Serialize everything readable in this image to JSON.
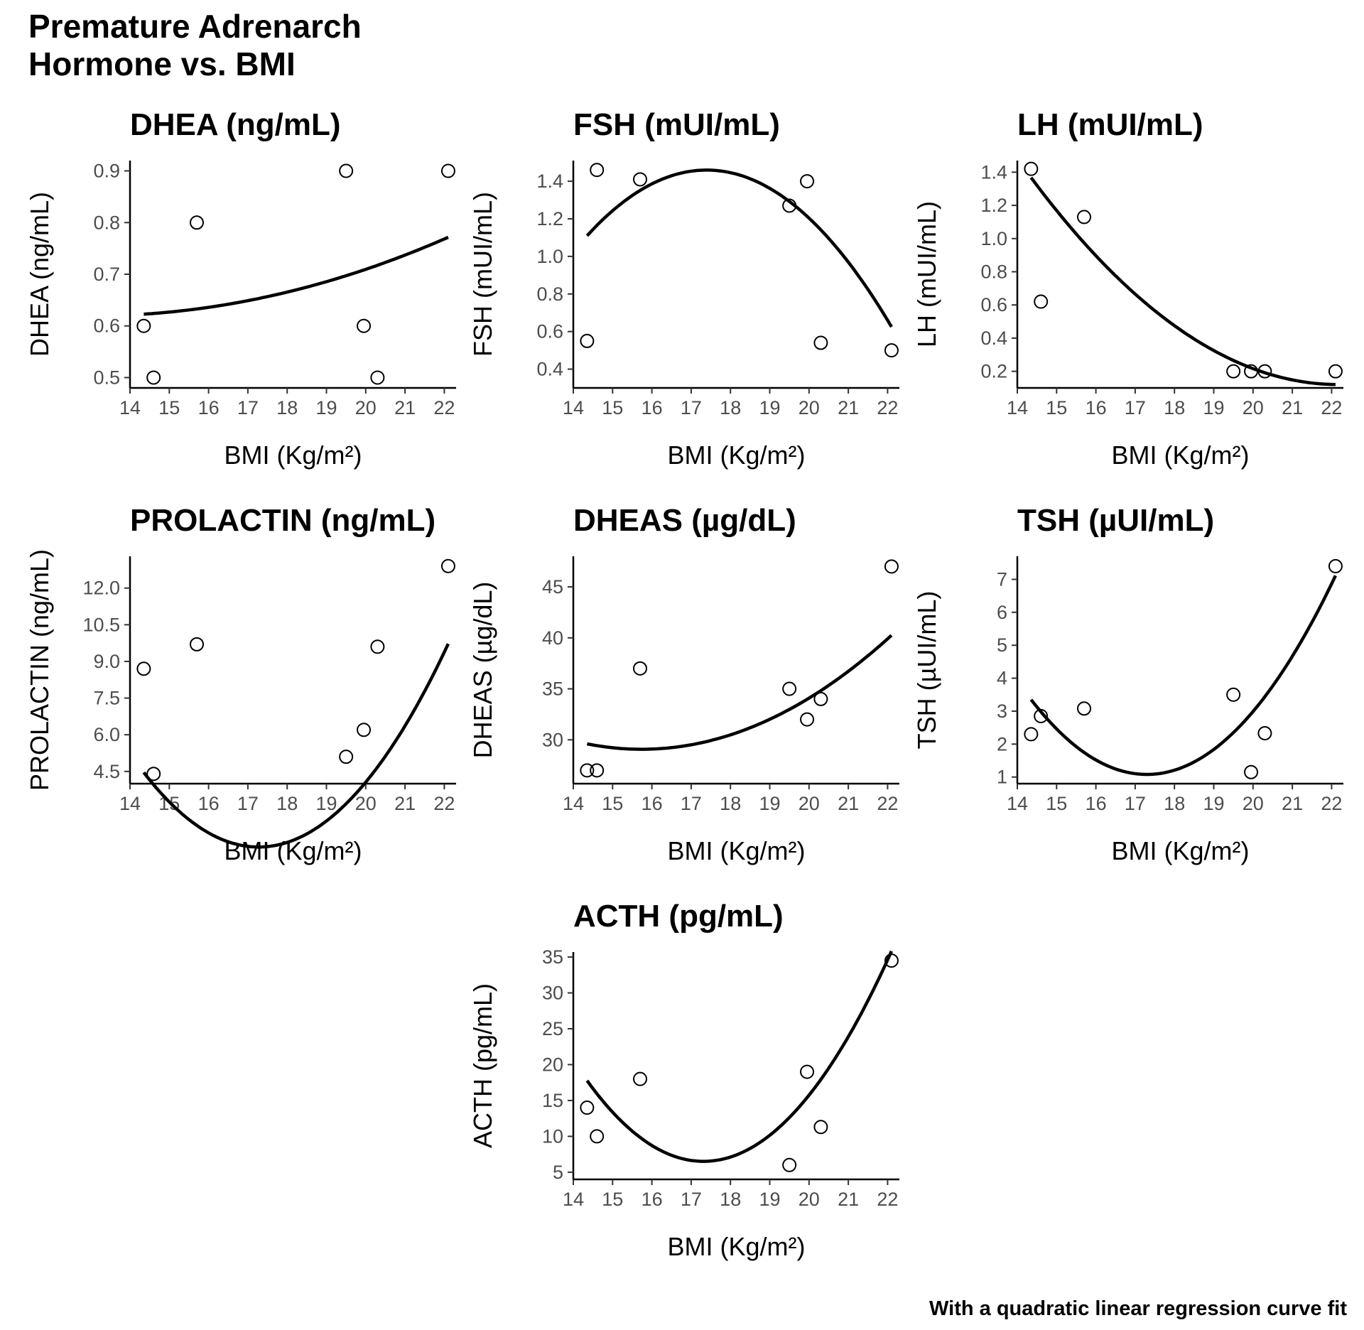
{
  "title": [
    "Premature Adrenarch",
    "Hormone vs. BMI"
  ],
  "caption": "With a quadratic linear regression curve fit",
  "chart_data": [
    {
      "type": "scatter",
      "title": "DHEA (ng/mL)",
      "xlabel": "BMI (Kg/m²)",
      "ylabel": "DHEA (ng/mL)",
      "xlim": [
        14,
        22.3
      ],
      "ylim": [
        0.48,
        0.92
      ],
      "x_ticks": [
        14,
        15,
        16,
        17,
        18,
        19,
        20,
        21,
        22
      ],
      "y_ticks": [
        0.5,
        0.6,
        0.7,
        0.8,
        0.9
      ],
      "y_tick_labels": [
        "0.5",
        "0.6",
        "0.7",
        "0.8",
        "0.9"
      ],
      "points": [
        [
          14.35,
          0.6
        ],
        [
          14.6,
          0.5
        ],
        [
          15.7,
          0.8
        ],
        [
          19.5,
          0.9
        ],
        [
          19.95,
          0.6
        ],
        [
          20.3,
          0.5
        ],
        [
          22.1,
          0.9
        ]
      ],
      "fit": {
        "method": "quadratic",
        "x_range": [
          14.35,
          22.1
        ],
        "coef": [
          0.9275,
          -0.0475,
          0.00183
        ]
      }
    },
    {
      "type": "scatter",
      "title": "FSH (mUI/mL)",
      "xlabel": "BMI (Kg/m²)",
      "ylabel": "FSH (mUI/mL)",
      "xlim": [
        14,
        22.3
      ],
      "ylim": [
        0.3,
        1.51
      ],
      "x_ticks": [
        14,
        15,
        16,
        17,
        18,
        19,
        20,
        21,
        22
      ],
      "y_ticks": [
        0.4,
        0.6,
        0.8,
        1.0,
        1.2,
        1.4
      ],
      "y_tick_labels": [
        "0.4",
        "0.6",
        "0.8",
        "1.0",
        "1.2",
        "1.4"
      ],
      "points": [
        [
          14.35,
          0.55
        ],
        [
          14.6,
          1.46
        ],
        [
          15.7,
          1.41
        ],
        [
          19.5,
          1.27
        ],
        [
          19.95,
          1.4
        ],
        [
          20.3,
          0.54
        ],
        [
          22.1,
          0.5
        ]
      ],
      "fit": {
        "method": "quadratic",
        "x_range": [
          14.35,
          22.1
        ],
        "coef": [
          -9.9484,
          1.3116,
          -0.0377
        ]
      }
    },
    {
      "type": "scatter",
      "title": "LH (mUI/mL)",
      "xlabel": "BMI (Kg/m²)",
      "ylabel": "LH (mUI/mL)",
      "xlim": [
        14,
        22.3
      ],
      "ylim": [
        0.1,
        1.47
      ],
      "x_ticks": [
        14,
        15,
        16,
        17,
        18,
        19,
        20,
        21,
        22
      ],
      "y_ticks": [
        0.2,
        0.4,
        0.6,
        0.8,
        1.0,
        1.2,
        1.4
      ],
      "y_tick_labels": [
        "0.2",
        "0.4",
        "0.6",
        "0.8",
        "1.0",
        "1.2",
        "1.4"
      ],
      "points": [
        [
          14.35,
          1.42
        ],
        [
          14.6,
          0.62
        ],
        [
          15.7,
          1.13
        ],
        [
          19.5,
          0.2
        ],
        [
          19.95,
          0.2
        ],
        [
          20.3,
          0.2
        ],
        [
          22.1,
          0.2
        ]
      ],
      "fit": {
        "method": "quadratic",
        "x_range": [
          14.35,
          22.1
        ],
        "coef": [
          10.1464,
          -0.9045,
          0.0204
        ]
      }
    },
    {
      "type": "scatter",
      "title": "PROLACTIN (ng/mL)",
      "xlabel": "BMI (Kg/m²)",
      "ylabel": "PROLACTIN (ng/mL)",
      "xlim": [
        14,
        22.3
      ],
      "ylim": [
        4.0,
        13.3
      ],
      "x_ticks": [
        14,
        15,
        16,
        17,
        18,
        19,
        20,
        21,
        22
      ],
      "y_ticks": [
        4.5,
        6.0,
        7.5,
        9.0,
        10.5,
        12.0
      ],
      "y_tick_labels": [
        "4.5",
        "6.0",
        "7.5",
        "9.0",
        "10.5",
        "12.0"
      ],
      "points": [
        [
          14.35,
          8.7
        ],
        [
          14.6,
          4.4
        ],
        [
          15.7,
          9.7
        ],
        [
          19.5,
          5.1
        ],
        [
          19.95,
          6.2
        ],
        [
          20.3,
          9.6
        ],
        [
          22.1,
          12.9
        ]
      ],
      "fit": {
        "method": "quadratic",
        "x_range": [
          14.35,
          22.1
        ],
        "coef": [
          107.9,
          -12.33,
          0.3569
        ]
      }
    },
    {
      "type": "scatter",
      "title": "DHEAS (µg/dL)",
      "xlabel": "BMI (Kg/m²)",
      "ylabel": "DHEAS (µg/dL)",
      "xlim": [
        14,
        22.3
      ],
      "ylim": [
        25.7,
        48
      ],
      "x_ticks": [
        14,
        15,
        16,
        17,
        18,
        19,
        20,
        21,
        22
      ],
      "y_ticks": [
        30,
        35,
        40,
        45
      ],
      "y_tick_labels": [
        "30",
        "35",
        "40",
        "45"
      ],
      "points": [
        [
          14.35,
          27
        ],
        [
          14.6,
          27
        ],
        [
          15.7,
          37
        ],
        [
          19.5,
          35
        ],
        [
          19.95,
          32
        ],
        [
          20.3,
          34
        ],
        [
          22.1,
          47
        ]
      ],
      "fit": {
        "method": "quadratic",
        "x_range": [
          14.35,
          22.1
        ],
        "coef": [
          97.51,
          -8.697,
          0.2763
        ]
      }
    },
    {
      "type": "scatter",
      "title": "TSH (µUI/mL)",
      "xlabel": "BMI (Kg/m²)",
      "ylabel": "TSH (µUI/mL)",
      "xlim": [
        14,
        22.3
      ],
      "ylim": [
        0.8,
        7.7
      ],
      "x_ticks": [
        14,
        15,
        16,
        17,
        18,
        19,
        20,
        21,
        22
      ],
      "y_ticks": [
        1,
        2,
        3,
        4,
        5,
        6,
        7
      ],
      "y_tick_labels": [
        "1",
        "2",
        "3",
        "4",
        "5",
        "6",
        "7"
      ],
      "points": [
        [
          14.35,
          2.3
        ],
        [
          14.6,
          2.85
        ],
        [
          15.7,
          3.08
        ],
        [
          19.5,
          3.5
        ],
        [
          19.95,
          1.15
        ],
        [
          20.3,
          2.33
        ],
        [
          22.1,
          7.4
        ]
      ],
      "fit": {
        "method": "quadratic",
        "x_range": [
          14.35,
          22.1
        ],
        "coef": [
          79.35,
          -9.05,
          0.2616
        ]
      }
    },
    {
      "type": "scatter",
      "title": "ACTH (pg/mL)",
      "xlabel": "BMI (Kg/m²)",
      "ylabel": "ACTH (pg/mL)",
      "xlim": [
        14,
        22.3
      ],
      "ylim": [
        4.0,
        35.7
      ],
      "x_ticks": [
        14,
        15,
        16,
        17,
        18,
        19,
        20,
        21,
        22
      ],
      "y_ticks": [
        5,
        10,
        15,
        20,
        25,
        30,
        35
      ],
      "y_tick_labels": [
        "5",
        "10",
        "15",
        "20",
        "25",
        "30",
        "35"
      ],
      "points": [
        [
          14.35,
          14
        ],
        [
          14.6,
          10
        ],
        [
          15.7,
          18
        ],
        [
          19.5,
          6
        ],
        [
          19.95,
          19
        ],
        [
          20.3,
          11.3
        ],
        [
          22.1,
          34.5
        ]
      ],
      "fit": {
        "method": "quadratic",
        "x_range": [
          14.35,
          22.1
        ],
        "coef": [
          390.3,
          -44.33,
          1.2801
        ]
      }
    }
  ]
}
